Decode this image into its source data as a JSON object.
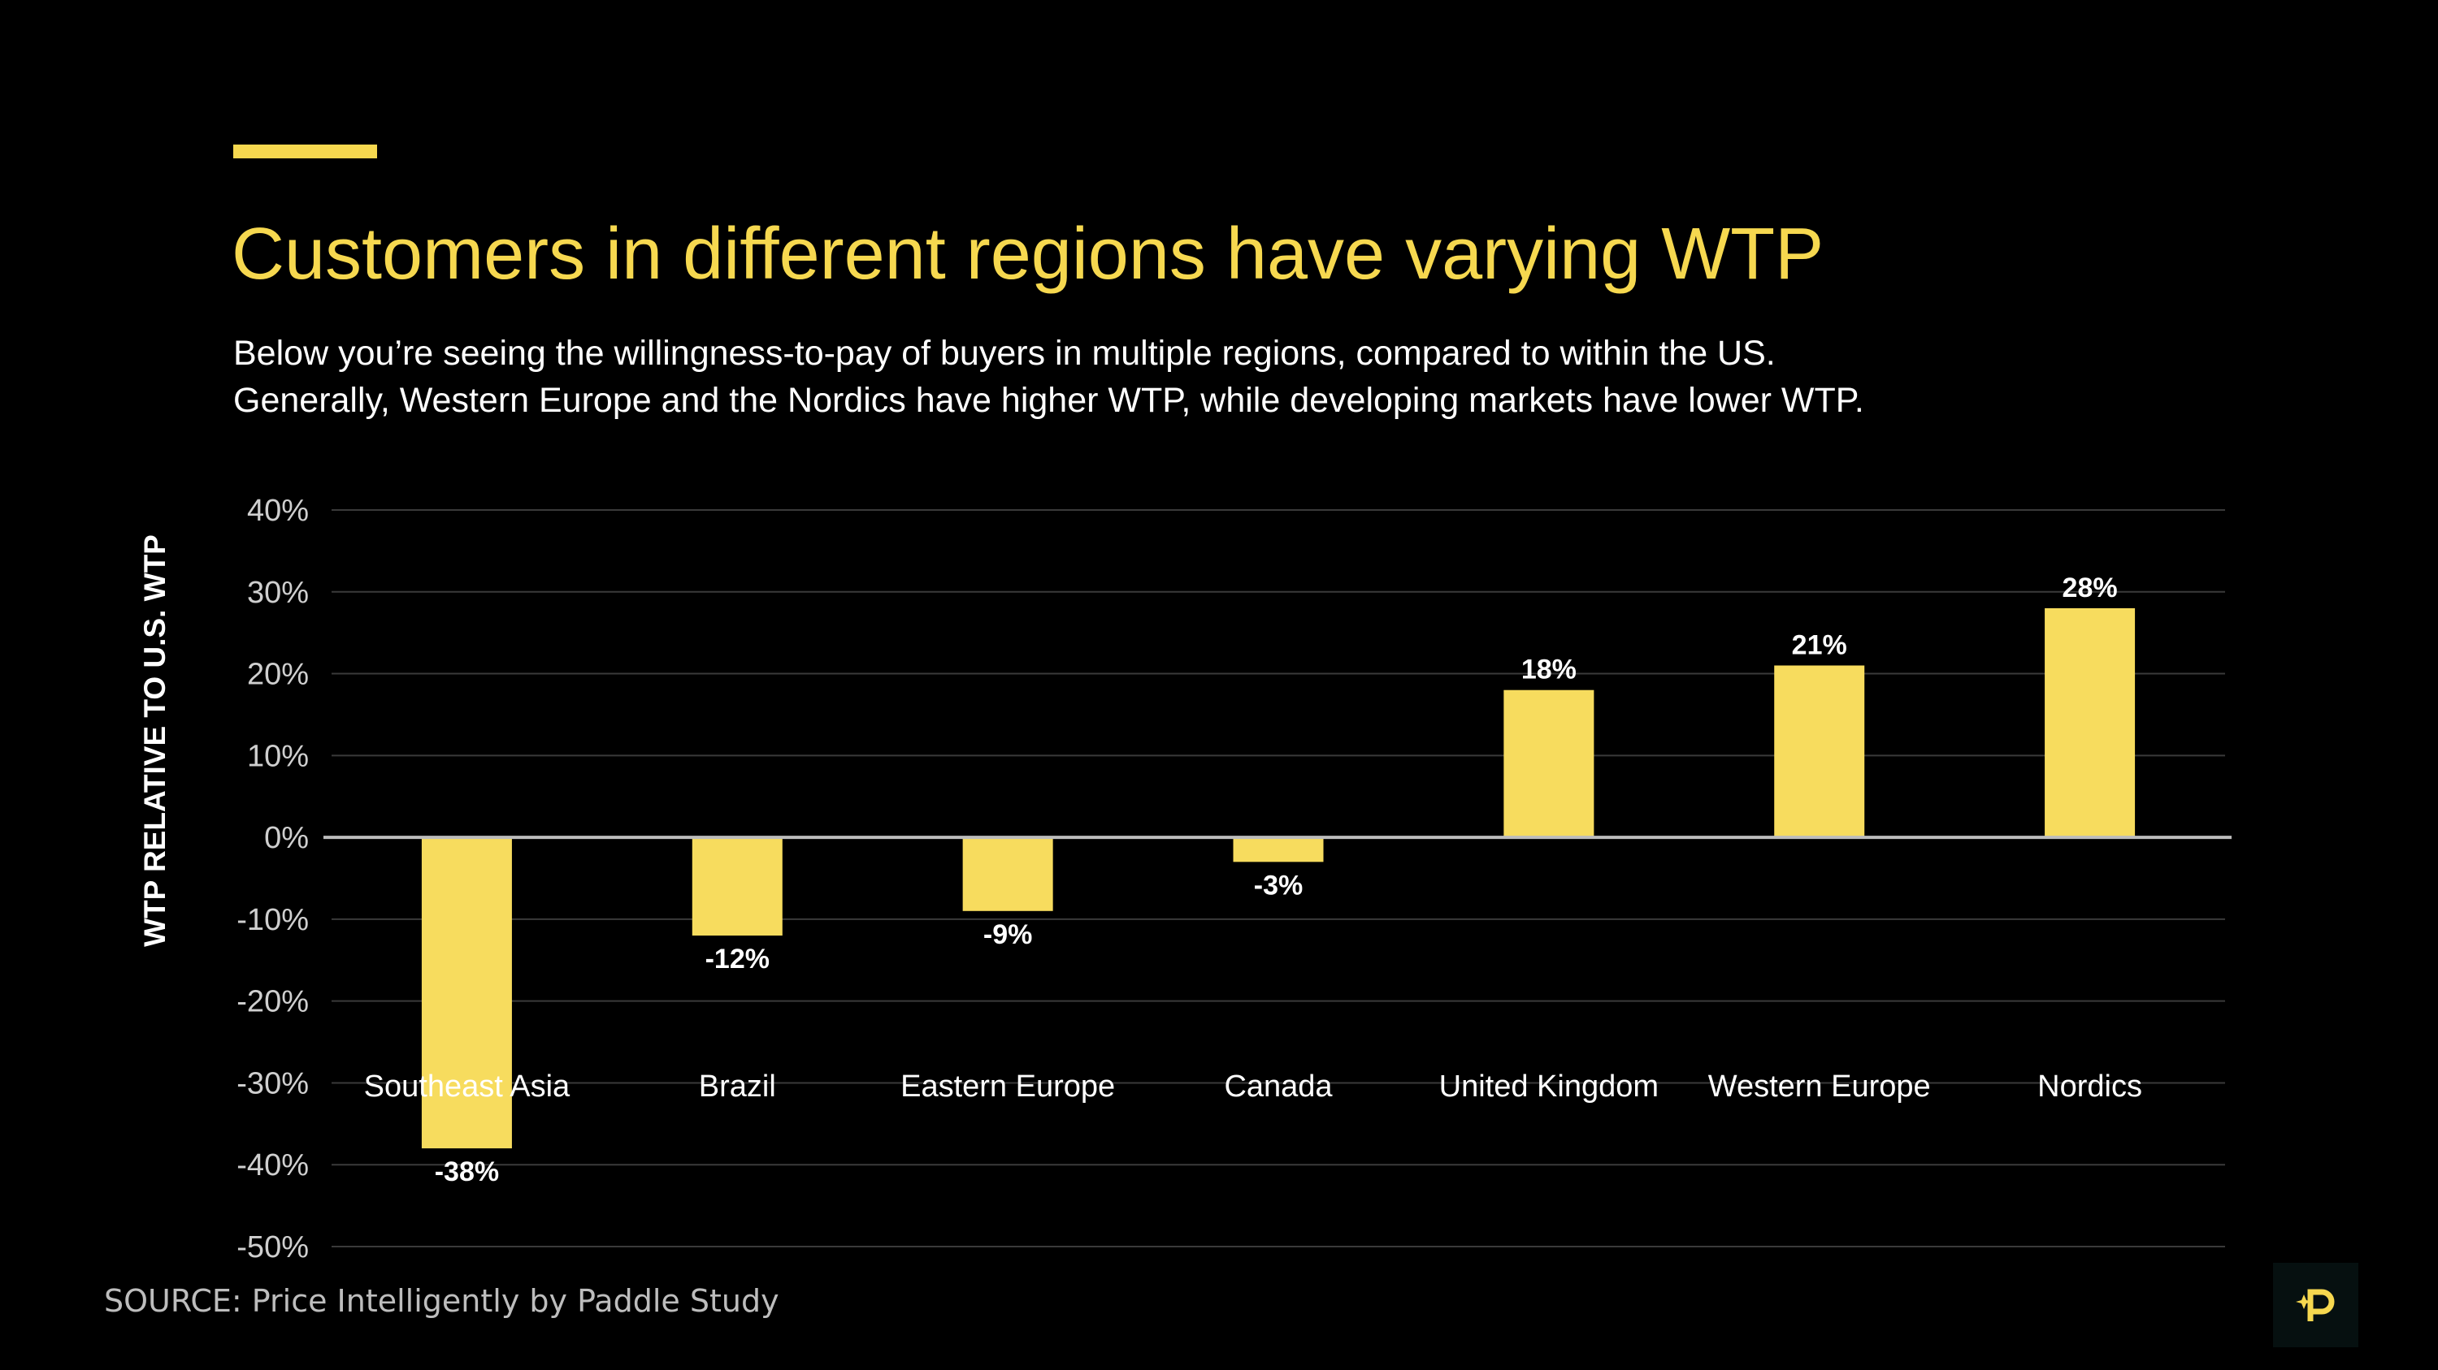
{
  "title": "Customers in different regions have varying WTP",
  "subtitle_lines": [
    "Below you’re seeing the willingness-to-pay of buyers in multiple regions, compared to within the US.",
    "Generally, Western Europe and the Nordics have higher WTP, while developing markets have lower WTP."
  ],
  "source": "SOURCE: Price Intelligently by Paddle Study",
  "logo_icon": "paddle-logo-icon",
  "colors": {
    "accent": "#f6d84f",
    "bar": "#f7dc5e",
    "background": "#000000"
  },
  "chart_data": {
    "type": "bar",
    "title": "",
    "xlabel": "",
    "ylabel": "WTP RELATIVE TO U.S. WTP",
    "ylim": [
      -50,
      40
    ],
    "yticks": [
      40,
      30,
      20,
      10,
      0,
      -10,
      -20,
      -30,
      -40,
      -50
    ],
    "ytick_labels": [
      "40%",
      "30%",
      "20%",
      "10%",
      "0%",
      "-10%",
      "-20%",
      "-30%",
      "-40%",
      "-50%"
    ],
    "grid": true,
    "categories": [
      "Southeast Asia",
      "Brazil",
      "Eastern Europe",
      "Canada",
      "United Kingdom",
      "Western Europe",
      "Nordics"
    ],
    "values": [
      -38,
      -12,
      -9,
      -3,
      18,
      21,
      28
    ],
    "data_labels": [
      "-38%",
      "-12%",
      "-9%",
      "-3%",
      "18%",
      "21%",
      "28%"
    ]
  }
}
